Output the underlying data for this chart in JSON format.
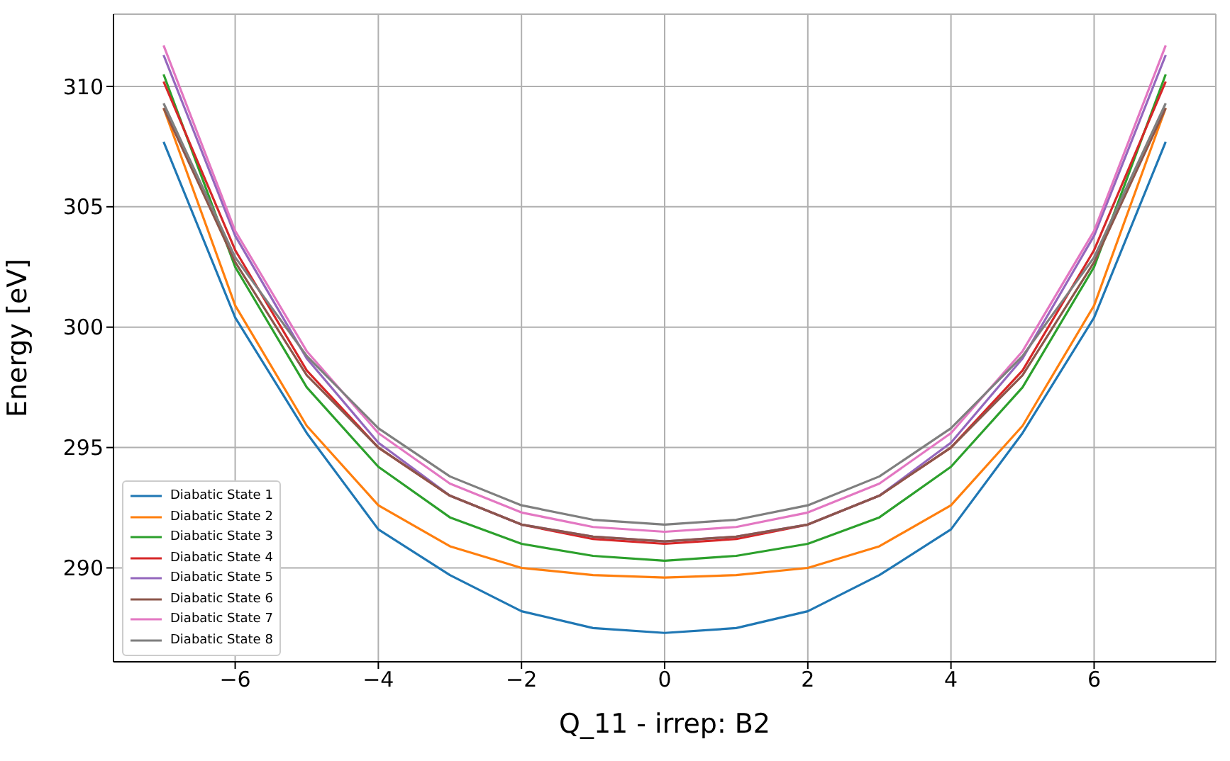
{
  "chart_data": {
    "type": "line",
    "xlabel": "Q_11 - irrep: B2",
    "ylabel": "Energy [eV]",
    "x": [
      -7,
      -6,
      -5,
      -4,
      -3,
      -2,
      -1,
      0,
      1,
      2,
      3,
      4,
      5,
      6,
      7
    ],
    "series": [
      {
        "name": "Diabatic State 1",
        "color": "#1f77b4",
        "values": [
          307.7,
          300.4,
          295.6,
          291.6,
          289.7,
          288.2,
          287.5,
          287.3,
          287.5,
          288.2,
          289.7,
          291.6,
          295.6,
          300.4,
          307.7
        ]
      },
      {
        "name": "Diabatic State 2",
        "color": "#ff7f0e",
        "values": [
          309.1,
          300.9,
          295.9,
          292.6,
          290.9,
          290.0,
          289.7,
          289.6,
          289.7,
          290.0,
          290.9,
          292.6,
          295.9,
          300.9,
          309.1
        ]
      },
      {
        "name": "Diabatic State 3",
        "color": "#2ca02c",
        "values": [
          310.5,
          302.5,
          297.5,
          294.2,
          292.1,
          291.0,
          290.5,
          290.3,
          290.5,
          291.0,
          292.1,
          294.2,
          297.5,
          302.5,
          310.5
        ]
      },
      {
        "name": "Diabatic State 4",
        "color": "#d62728",
        "values": [
          310.2,
          303.2,
          298.2,
          295.0,
          293.0,
          291.8,
          291.2,
          291.0,
          291.2,
          291.8,
          293.0,
          295.0,
          298.2,
          303.2,
          310.2
        ]
      },
      {
        "name": "Diabatic State 5",
        "color": "#9467bd",
        "values": [
          311.3,
          303.8,
          298.7,
          295.2,
          293.0,
          291.8,
          291.3,
          291.1,
          291.3,
          291.8,
          293.0,
          295.2,
          298.7,
          303.8,
          311.3
        ]
      },
      {
        "name": "Diabatic State 6",
        "color": "#8c564b",
        "values": [
          309.1,
          302.7,
          298.0,
          295.0,
          293.0,
          291.8,
          291.3,
          291.1,
          291.3,
          291.8,
          293.0,
          295.0,
          298.0,
          302.7,
          309.1
        ]
      },
      {
        "name": "Diabatic State 7",
        "color": "#e377c2",
        "values": [
          311.7,
          304.0,
          299.0,
          295.6,
          293.5,
          292.3,
          291.7,
          291.5,
          291.7,
          292.3,
          293.5,
          295.6,
          299.0,
          304.0,
          311.7
        ]
      },
      {
        "name": "Diabatic State 8",
        "color": "#7f7f7f",
        "values": [
          309.3,
          302.9,
          298.8,
          295.8,
          293.8,
          292.6,
          292.0,
          291.8,
          292.0,
          292.6,
          293.8,
          295.8,
          298.8,
          302.9,
          309.3
        ]
      }
    ],
    "xlim": [
      -7.7,
      7.7
    ],
    "ylim": [
      286.1,
      313
    ],
    "xticks": [
      {
        "value": -6,
        "label": "−6"
      },
      {
        "value": -4,
        "label": "−4"
      },
      {
        "value": -2,
        "label": "−2"
      },
      0,
      2,
      4,
      6
    ],
    "yticks": [
      290,
      295,
      300,
      305,
      310
    ],
    "grid": true,
    "legend": "bottom left",
    "marker": "none",
    "line_style": "solid"
  }
}
